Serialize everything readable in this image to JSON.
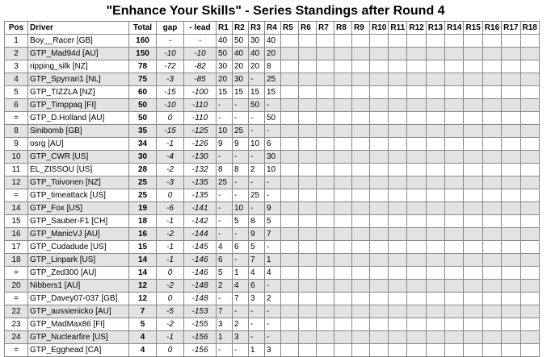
{
  "title": "\"Enhance Your Skills\" - Series Standings after Round 4",
  "headers": {
    "pos": "Pos",
    "driver": "Driver",
    "total": "Total",
    "gap": "gap",
    "lead": "- lead",
    "rounds": [
      "R1",
      "R2",
      "R3",
      "R4",
      "R5",
      "R6",
      "R7",
      "R8",
      "R9",
      "R10",
      "R11",
      "R12",
      "R13",
      "R14",
      "R15",
      "R16",
      "R17",
      "R18"
    ]
  },
  "rows": [
    {
      "pos": "1",
      "driver": "Boy__Racer [GB]",
      "total": "160",
      "gap": "-",
      "lead": "-",
      "r": [
        "40",
        "50",
        "30",
        "40"
      ]
    },
    {
      "pos": "2",
      "driver": "GTP_Mad94d [AU]",
      "total": "150",
      "gap": "-10",
      "lead": "-10",
      "r": [
        "50",
        "40",
        "40",
        "20"
      ]
    },
    {
      "pos": "3",
      "driver": "ripping_silk [NZ]",
      "total": "78",
      "gap": "-72",
      "lead": "-82",
      "r": [
        "30",
        "20",
        "20",
        "8"
      ]
    },
    {
      "pos": "4",
      "driver": "GTP_Spyrrari1 [NL]",
      "total": "75",
      "gap": "-3",
      "lead": "-85",
      "r": [
        "20",
        "30",
        "-",
        "25"
      ]
    },
    {
      "pos": "5",
      "driver": "GTP_TIZZLA [NZ]",
      "total": "60",
      "gap": "-15",
      "lead": "-100",
      "r": [
        "15",
        "15",
        "15",
        "15"
      ]
    },
    {
      "pos": "6",
      "driver": "GTP_Timppaq [FI]",
      "total": "50",
      "gap": "-10",
      "lead": "-110",
      "r": [
        "-",
        "-",
        "50",
        "-"
      ]
    },
    {
      "pos": "=",
      "driver": "GTP_D.Holland [AU]",
      "total": "50",
      "gap": "0",
      "lead": "-110",
      "r": [
        "-",
        "-",
        "-",
        "50"
      ]
    },
    {
      "pos": "8",
      "driver": "Sinibomb [GB]",
      "total": "35",
      "gap": "-15",
      "lead": "-125",
      "r": [
        "10",
        "25",
        "-",
        "-"
      ]
    },
    {
      "pos": "9",
      "driver": "osrg [AU]",
      "total": "34",
      "gap": "-1",
      "lead": "-126",
      "r": [
        "9",
        "9",
        "10",
        "6"
      ]
    },
    {
      "pos": "10",
      "driver": "GTP_CWR [US]",
      "total": "30",
      "gap": "-4",
      "lead": "-130",
      "r": [
        "-",
        "-",
        "-",
        "30"
      ]
    },
    {
      "pos": "11",
      "driver": "EL_ZISSOU [US]",
      "total": "28",
      "gap": "-2",
      "lead": "-132",
      "r": [
        "8",
        "8",
        "2",
        "10"
      ]
    },
    {
      "pos": "12",
      "driver": "GTP_Toivonen [NZ]",
      "total": "25",
      "gap": "-3",
      "lead": "-135",
      "r": [
        "25",
        "-",
        "-",
        "-"
      ]
    },
    {
      "pos": "=",
      "driver": "GTP_timeattack [US]",
      "total": "25",
      "gap": "0",
      "lead": "-135",
      "r": [
        "-",
        "-",
        "25",
        "-"
      ]
    },
    {
      "pos": "14",
      "driver": "GTP_Fox [US]",
      "total": "19",
      "gap": "-6",
      "lead": "-141",
      "r": [
        "-",
        "10",
        "-",
        "9"
      ]
    },
    {
      "pos": "15",
      "driver": "GTP_Sauber-F1 [CH]",
      "total": "18",
      "gap": "-1",
      "lead": "-142",
      "r": [
        "-",
        "5",
        "8",
        "5"
      ]
    },
    {
      "pos": "16",
      "driver": "GTP_ManicVJ [AU]",
      "total": "16",
      "gap": "-2",
      "lead": "-144",
      "r": [
        "-",
        "-",
        "9",
        "7"
      ]
    },
    {
      "pos": "17",
      "driver": "GTP_Cudadude [US]",
      "total": "15",
      "gap": "-1",
      "lead": "-145",
      "r": [
        "4",
        "6",
        "5",
        "-"
      ]
    },
    {
      "pos": "18",
      "driver": "GTP_Linpark [US]",
      "total": "14",
      "gap": "-1",
      "lead": "-146",
      "r": [
        "6",
        "-",
        "7",
        "1"
      ]
    },
    {
      "pos": "=",
      "driver": "GTP_Zed300 [AU]",
      "total": "14",
      "gap": "0",
      "lead": "-146",
      "r": [
        "5",
        "1",
        "4",
        "4"
      ]
    },
    {
      "pos": "20",
      "driver": "Nibbers1 [AU]",
      "total": "12",
      "gap": "-2",
      "lead": "-148",
      "r": [
        "2",
        "4",
        "6",
        "-"
      ]
    },
    {
      "pos": "=",
      "driver": "GTP_Davey07-037 [GB]",
      "total": "12",
      "gap": "0",
      "lead": "-148",
      "r": [
        "-",
        "7",
        "3",
        "2"
      ]
    },
    {
      "pos": "22",
      "driver": "GTP_aussienicko [AU]",
      "total": "7",
      "gap": "-5",
      "lead": "-153",
      "r": [
        "7",
        "-",
        "-",
        "-"
      ]
    },
    {
      "pos": "23",
      "driver": "GTP_MadMax86 [FI]",
      "total": "5",
      "gap": "-2",
      "lead": "-155",
      "r": [
        "3",
        "2",
        "-",
        "-"
      ]
    },
    {
      "pos": "24",
      "driver": "GTP_Nuclearfire [US]",
      "total": "4",
      "gap": "-1",
      "lead": "-156",
      "r": [
        "1",
        "3",
        "-",
        "-"
      ]
    },
    {
      "pos": "=",
      "driver": "GTP_Egghead [CA]",
      "total": "4",
      "gap": "0",
      "lead": "-156",
      "r": [
        "-",
        "-",
        "1",
        "3"
      ]
    }
  ]
}
